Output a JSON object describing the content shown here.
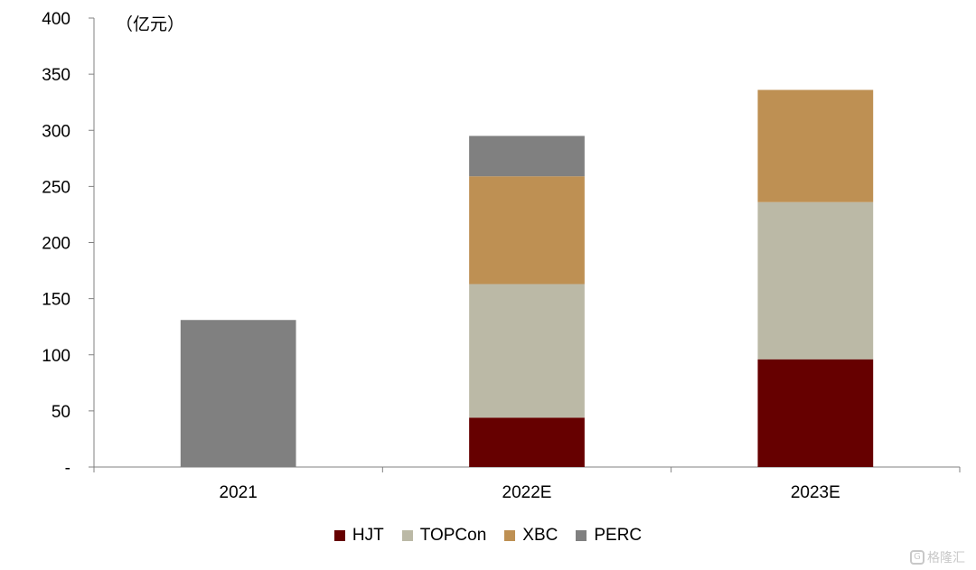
{
  "chart_data": {
    "type": "bar",
    "stacked": true,
    "unit_label": "（亿元）",
    "categories": [
      "2021",
      "2022E",
      "2023E"
    ],
    "series": [
      {
        "name": "HJT",
        "color": "#660000",
        "values": [
          0,
          44,
          96
        ]
      },
      {
        "name": "TOPCon",
        "color": "#bbb9a6",
        "values": [
          0,
          119,
          140
        ]
      },
      {
        "name": "XBC",
        "color": "#be9053",
        "values": [
          0,
          96,
          100
        ]
      },
      {
        "name": "PERC",
        "color": "#808080",
        "values": [
          131,
          36,
          0
        ]
      }
    ],
    "ylim": [
      0,
      400
    ],
    "yticks": [
      "-",
      "50",
      "100",
      "150",
      "200",
      "250",
      "300",
      "350",
      "400"
    ],
    "grid": false,
    "legend_position": "bottom"
  },
  "watermark": {
    "text": "格隆汇",
    "icon": "g-logo-icon"
  }
}
